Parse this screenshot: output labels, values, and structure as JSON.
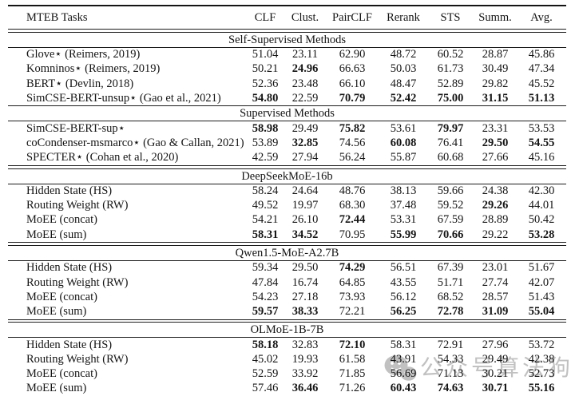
{
  "colors": {
    "background": "#ffffff",
    "text": "#141414",
    "rule": "#1c1c1c",
    "watermark": "#b2b2b2"
  },
  "table": {
    "header_task": "MTEB Tasks",
    "columns": [
      "CLF",
      "Clust.",
      "PairCLF",
      "Rerank",
      "STS",
      "Summ.",
      "Avg."
    ],
    "sections": [
      {
        "title": "Self-Supervised Methods",
        "divider_above": "double",
        "rows": [
          {
            "label": "Glove⋆ (Reimers, 2019)",
            "values": [
              "51.04",
              "23.11",
              "62.90",
              "48.72",
              "60.52",
              "28.87",
              "45.86"
            ],
            "bold": [
              0,
              0,
              0,
              0,
              0,
              0,
              0
            ]
          },
          {
            "label": "Komninos⋆ (Reimers, 2019)",
            "values": [
              "50.21",
              "24.96",
              "66.63",
              "50.03",
              "61.73",
              "30.49",
              "47.34"
            ],
            "bold": [
              0,
              1,
              0,
              0,
              0,
              0,
              0
            ]
          },
          {
            "label": "BERT⋆ (Devlin, 2018)",
            "values": [
              "52.36",
              "23.48",
              "66.10",
              "48.47",
              "52.89",
              "29.82",
              "45.52"
            ],
            "bold": [
              0,
              0,
              0,
              0,
              0,
              0,
              0
            ]
          },
          {
            "label": "SimCSE-BERT-unsup⋆ (Gao et al., 2021)",
            "values": [
              "54.80",
              "22.59",
              "70.79",
              "52.42",
              "75.00",
              "31.15",
              "51.13"
            ],
            "bold": [
              1,
              0,
              1,
              1,
              1,
              1,
              1
            ]
          }
        ]
      },
      {
        "title": "Supervised Methods",
        "divider_above": "single",
        "rows": [
          {
            "label": "SimCSE-BERT-sup⋆",
            "values": [
              "58.98",
              "29.49",
              "75.82",
              "53.61",
              "79.97",
              "23.31",
              "53.53"
            ],
            "bold": [
              1,
              0,
              1,
              0,
              1,
              0,
              0
            ]
          },
          {
            "label": "coCondenser-msmarco⋆ (Gao & Callan, 2021)",
            "values": [
              "53.89",
              "32.85",
              "74.56",
              "60.08",
              "76.41",
              "29.50",
              "54.55"
            ],
            "bold": [
              0,
              1,
              0,
              1,
              0,
              1,
              1
            ]
          },
          {
            "label": "SPECTER⋆ (Cohan et al., 2020)",
            "values": [
              "42.59",
              "27.94",
              "56.24",
              "55.87",
              "60.68",
              "27.66",
              "45.16"
            ],
            "bold": [
              0,
              0,
              0,
              0,
              0,
              0,
              0
            ]
          }
        ]
      },
      {
        "title": "DeepSeekMoE-16b",
        "divider_above": "double",
        "rows": [
          {
            "label": "Hidden State (HS)",
            "values": [
              "58.24",
              "24.64",
              "48.76",
              "38.13",
              "59.66",
              "24.38",
              "42.30"
            ],
            "bold": [
              0,
              0,
              0,
              0,
              0,
              0,
              0
            ]
          },
          {
            "label": "Routing Weight (RW)",
            "values": [
              "49.52",
              "19.97",
              "68.30",
              "37.48",
              "59.52",
              "29.26",
              "44.01"
            ],
            "bold": [
              0,
              0,
              0,
              0,
              0,
              1,
              0
            ]
          },
          {
            "label": "MoEE (concat)",
            "values": [
              "54.21",
              "26.10",
              "72.44",
              "53.31",
              "67.59",
              "28.89",
              "50.42"
            ],
            "bold": [
              0,
              0,
              1,
              0,
              0,
              0,
              0
            ]
          },
          {
            "label": "MoEE (sum)",
            "values": [
              "58.31",
              "34.52",
              "70.95",
              "55.99",
              "70.66",
              "29.22",
              "53.28"
            ],
            "bold": [
              1,
              1,
              0,
              1,
              1,
              0,
              1
            ]
          }
        ]
      },
      {
        "title": "Qwen1.5-MoE-A2.7B",
        "divider_above": "double",
        "rows": [
          {
            "label": "Hidden State (HS)",
            "values": [
              "59.34",
              "29.50",
              "74.29",
              "56.51",
              "67.39",
              "23.01",
              "51.67"
            ],
            "bold": [
              0,
              0,
              1,
              0,
              0,
              0,
              0
            ]
          },
          {
            "label": "Routing Weight (RW)",
            "values": [
              "47.84",
              "16.74",
              "64.85",
              "43.55",
              "51.71",
              "27.74",
              "42.07"
            ],
            "bold": [
              0,
              0,
              0,
              0,
              0,
              0,
              0
            ]
          },
          {
            "label": "MoEE (concat)",
            "values": [
              "54.23",
              "27.18",
              "73.93",
              "56.12",
              "68.52",
              "28.57",
              "51.43"
            ],
            "bold": [
              0,
              0,
              0,
              0,
              0,
              0,
              0
            ]
          },
          {
            "label": "MoEE (sum)",
            "values": [
              "59.57",
              "38.33",
              "72.21",
              "56.25",
              "72.78",
              "31.09",
              "55.04"
            ],
            "bold": [
              1,
              1,
              0,
              1,
              1,
              1,
              1
            ]
          }
        ]
      },
      {
        "title": "OLMoE-1B-7B",
        "divider_above": "double",
        "rows": [
          {
            "label": "Hidden State (HS)",
            "values": [
              "58.18",
              "32.83",
              "72.10",
              "58.31",
              "72.91",
              "27.96",
              "53.72"
            ],
            "bold": [
              1,
              0,
              1,
              0,
              0,
              0,
              0
            ]
          },
          {
            "label": "Routing Weight (RW)",
            "values": [
              "45.02",
              "19.93",
              "61.58",
              "43.91",
              "54.33",
              "29.49",
              "42.38"
            ],
            "bold": [
              0,
              0,
              0,
              0,
              0,
              0,
              0
            ]
          },
          {
            "label": "MoEE (concat)",
            "values": [
              "52.59",
              "33.92",
              "71.85",
              "56.69",
              "71.13",
              "30.21",
              "52.73"
            ],
            "bold": [
              0,
              0,
              0,
              0,
              0,
              0,
              0
            ]
          },
          {
            "label": "MoEE (sum)",
            "values": [
              "57.46",
              "36.46",
              "71.26",
              "60.43",
              "74.63",
              "30.71",
              "55.16"
            ],
            "bold": [
              0,
              1,
              0,
              1,
              1,
              1,
              1
            ]
          }
        ]
      }
    ]
  },
  "watermark": {
    "icon": "wechat-icon",
    "text": "公众号算法狗"
  }
}
